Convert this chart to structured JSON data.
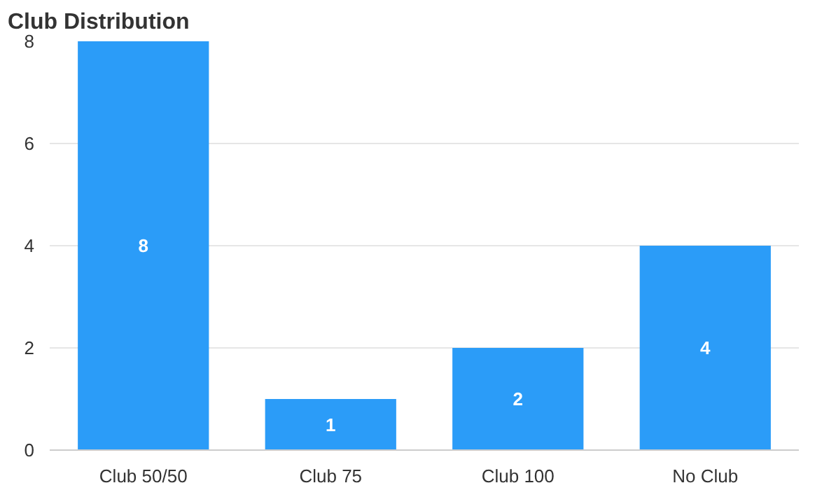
{
  "chart_data": {
    "type": "bar",
    "title": "Club Distribution",
    "categories": [
      "Club 50/50",
      "Club 75",
      "Club 100",
      "No Club"
    ],
    "values": [
      8,
      1,
      2,
      4
    ],
    "color": "#2b9cf8",
    "ylim": [
      0,
      8
    ],
    "yticks": [
      0,
      2,
      4,
      6,
      8
    ],
    "grid": "y",
    "data_labels": true
  }
}
